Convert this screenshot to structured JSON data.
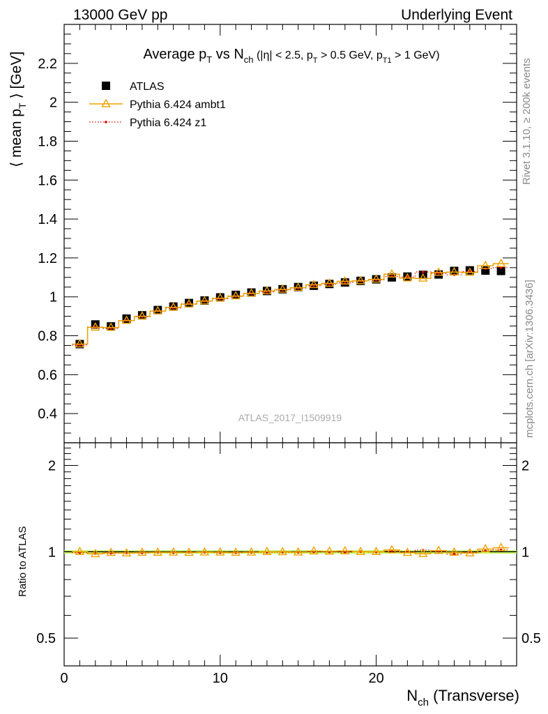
{
  "header": {
    "left": "13000 GeV pp",
    "right": "Underlying Event"
  },
  "side_labels": {
    "rivet": "Rivet 3.1.10, ≥ 200k events",
    "mcplots": "mcplots.cern.ch [arXiv:1306.3436]"
  },
  "watermark": "ATLAS_2017_I1509919",
  "colors": {
    "atlas": "#000000",
    "ambt1": "#f0a000",
    "z1": "#dd0000",
    "band": "#ccff66",
    "watermark": "#aaaaaa",
    "side": "#888888"
  },
  "chart_data": [
    {
      "type": "scatter",
      "title": "Average p_T vs N_ch (|η| < 2.5, p_T > 0.5 GeV, p_T1 > 1 GeV)",
      "xlabel": "N_ch (Transverse)",
      "ylabel": "⟨ mean p_T ⟩ [GeV]",
      "xlim": [
        0,
        29
      ],
      "ylim": [
        0.25,
        2.4
      ],
      "yticks": [
        0.4,
        0.6,
        0.8,
        1.0,
        1.2,
        1.4,
        1.6,
        1.8,
        2.0,
        2.2
      ],
      "ytick_labels": [
        "0.4",
        "0.6",
        "0.8",
        "1",
        "1.2",
        "1.4",
        "1.6",
        "1.8",
        "2",
        "2.2"
      ],
      "legend_position": "top-left",
      "x": [
        1,
        2,
        3,
        4,
        5,
        6,
        7,
        8,
        9,
        10,
        11,
        12,
        13,
        14,
        15,
        16,
        17,
        18,
        19,
        20,
        21,
        22,
        23,
        24,
        25,
        26,
        27,
        28
      ],
      "series": [
        {
          "name": "ATLAS",
          "style": "square",
          "values": [
            0.757,
            0.858,
            0.848,
            0.888,
            0.905,
            0.932,
            0.95,
            0.968,
            0.981,
            0.997,
            1.01,
            1.022,
            1.03,
            1.039,
            1.05,
            1.057,
            1.066,
            1.074,
            1.082,
            1.09,
            1.1,
            1.104,
            1.113,
            1.115,
            1.133,
            1.136,
            1.135,
            1.133
          ]
        },
        {
          "name": "Pythia 6.424 ambt1",
          "style": "solid-triangle",
          "values": [
            0.757,
            0.843,
            0.842,
            0.878,
            0.9,
            0.927,
            0.946,
            0.962,
            0.978,
            0.993,
            1.004,
            1.018,
            1.03,
            1.038,
            1.047,
            1.062,
            1.069,
            1.08,
            1.082,
            1.09,
            1.116,
            1.096,
            1.095,
            1.125,
            1.127,
            1.125,
            1.16,
            1.17
          ]
        },
        {
          "name": "Pythia 6.424 z1",
          "style": "dotted-point",
          "values": [
            0.752,
            0.845,
            0.838,
            0.878,
            0.897,
            0.927,
            0.943,
            0.964,
            0.977,
            0.99,
            1.002,
            1.017,
            1.025,
            1.035,
            1.045,
            1.057,
            1.064,
            1.072,
            1.082,
            1.087,
            1.105,
            1.102,
            1.128,
            1.12,
            1.113,
            1.13,
            1.145,
            1.15
          ]
        }
      ]
    },
    {
      "type": "scatter",
      "title": "",
      "xlabel": "N_ch (Transverse)",
      "ylabel": "Ratio to ATLAS",
      "xlim": [
        0,
        29
      ],
      "ylim": [
        0.4,
        2.4
      ],
      "yscale": "log",
      "yticks": [
        0.5,
        1,
        2
      ],
      "ytick_labels": [
        "0.5",
        "1",
        "2"
      ],
      "xticks": [
        0,
        10,
        20
      ],
      "xtick_labels": [
        "0",
        "10",
        "20"
      ],
      "x": [
        1,
        2,
        3,
        4,
        5,
        6,
        7,
        8,
        9,
        10,
        11,
        12,
        13,
        14,
        15,
        16,
        17,
        18,
        19,
        20,
        21,
        22,
        23,
        24,
        25,
        26,
        27,
        28
      ],
      "series": [
        {
          "name": "Pythia 6.424 ambt1",
          "style": "solid-triangle",
          "values": [
            1.0,
            0.983,
            0.993,
            0.989,
            0.994,
            0.995,
            0.996,
            0.994,
            0.997,
            0.996,
            0.994,
            0.996,
            1.0,
            0.999,
            0.997,
            1.005,
            1.003,
            1.006,
            1.0,
            1.0,
            1.015,
            0.993,
            0.984,
            1.009,
            0.995,
            0.99,
            1.022,
            1.033
          ]
        },
        {
          "name": "Pythia 6.424 z1",
          "style": "dotted-point",
          "values": [
            0.993,
            0.985,
            0.988,
            0.989,
            0.991,
            0.995,
            0.993,
            0.996,
            0.996,
            0.993,
            0.992,
            0.995,
            0.995,
            0.996,
            0.995,
            1.0,
            0.998,
            0.998,
            1.0,
            0.997,
            1.005,
            0.998,
            1.014,
            1.004,
            0.982,
            0.995,
            1.009,
            1.015
          ]
        }
      ]
    }
  ]
}
